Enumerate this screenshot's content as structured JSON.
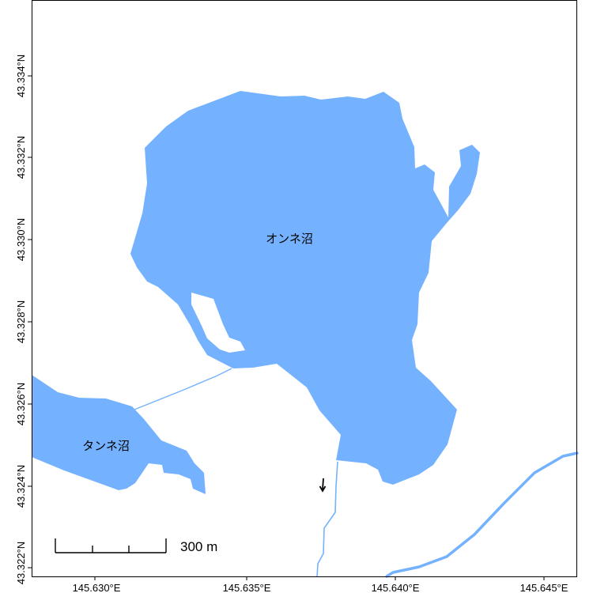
{
  "map": {
    "colors": {
      "water": "#74b2ff",
      "stream": "#74b2ff",
      "frame": "#000000",
      "background": "#ffffff"
    },
    "lakes": [
      {
        "name": "オンネ沼"
      },
      {
        "name": "タンネ沼"
      }
    ],
    "scale_bar": {
      "label": "300 m"
    },
    "north_arrow_icon": "arrow-down-icon",
    "x_axis": {
      "ticks": [
        "145.630°E",
        "145.635°E",
        "145.640°E",
        "145.645°E"
      ]
    },
    "y_axis": {
      "ticks": [
        "43.322°N",
        "43.324°N",
        "43.326°N",
        "43.328°N",
        "43.330°N",
        "43.332°N",
        "43.334°N"
      ]
    }
  }
}
